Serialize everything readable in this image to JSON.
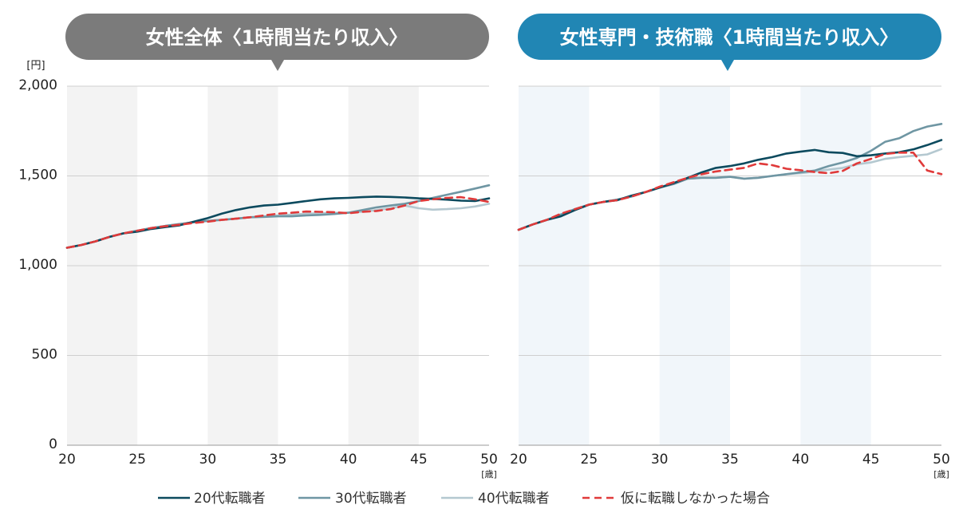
{
  "titles": {
    "left": "女性全体〈1時間当たり収入〉",
    "right": "女性専門・技術職〈1時間当たり収入〉"
  },
  "units": {
    "y": "[円]",
    "x": "[歳]"
  },
  "colors": {
    "left_title_bg": "#7b7b7b",
    "right_title_bg": "#2186b4",
    "left_band": "#f3f3f3",
    "right_band": "#f1f6fa",
    "grid": "#cfcfcf",
    "series_20": "#0c4a5e",
    "series_30": "#6f96a3",
    "series_40": "#b4c8d0",
    "series_none": "#e03a3a"
  },
  "legend": [
    {
      "label": "20代転職者",
      "color": "#0c4a5e",
      "dash": false
    },
    {
      "label": "30代転職者",
      "color": "#6f96a3",
      "dash": false
    },
    {
      "label": "40代転職者",
      "color": "#b4c8d0",
      "dash": false
    },
    {
      "label": "仮に転職しなかった場合",
      "color": "#e03a3a",
      "dash": true
    }
  ],
  "chart_data": [
    {
      "type": "line",
      "title": "女性全体〈1時間当たり収入〉",
      "ylabel": "[円]",
      "xlabel": "[歳]",
      "ylim": [
        0,
        2000
      ],
      "xlim": [
        20,
        50
      ],
      "yticks": [
        0,
        500,
        1000,
        1500,
        2000
      ],
      "ytick_labels": [
        "0",
        "500",
        "1,000",
        "1,500",
        "2,000"
      ],
      "xticks": [
        20,
        25,
        30,
        35,
        40,
        45,
        50
      ],
      "xtick_labels": [
        "20",
        "25",
        "30",
        "35",
        "40",
        "45",
        "50"
      ],
      "shaded_bands": [
        [
          20,
          25
        ],
        [
          30,
          35
        ],
        [
          40,
          45
        ]
      ],
      "grid": true,
      "x": [
        20,
        21,
        22,
        23,
        24,
        25,
        26,
        27,
        28,
        29,
        30,
        31,
        32,
        33,
        34,
        35,
        36,
        37,
        38,
        39,
        40,
        41,
        42,
        43,
        44,
        45,
        46,
        47,
        48,
        49,
        50
      ],
      "series": [
        {
          "name": "20代転職者",
          "values": [
            1100,
            1115,
            1135,
            1160,
            1180,
            1190,
            1205,
            1215,
            1225,
            1245,
            1265,
            1290,
            1310,
            1325,
            1335,
            1340,
            1350,
            1360,
            1370,
            1375,
            1378,
            1382,
            1385,
            1383,
            1380,
            1375,
            1372,
            1368,
            1362,
            1360,
            1375
          ]
        },
        {
          "name": "30代転職者",
          "values": [
            1100,
            1115,
            1135,
            1160,
            1180,
            1195,
            1210,
            1222,
            1232,
            1242,
            1250,
            1255,
            1262,
            1270,
            1272,
            1275,
            1275,
            1280,
            1283,
            1288,
            1295,
            1310,
            1325,
            1335,
            1345,
            1360,
            1378,
            1395,
            1412,
            1430,
            1448
          ]
        },
        {
          "name": "40代転職者",
          "values": [
            1100,
            1115,
            1135,
            1160,
            1180,
            1195,
            1210,
            1222,
            1232,
            1242,
            1250,
            1255,
            1262,
            1270,
            1275,
            1280,
            1285,
            1290,
            1292,
            1294,
            1295,
            1300,
            1310,
            1320,
            1335,
            1320,
            1312,
            1315,
            1320,
            1330,
            1345
          ]
        },
        {
          "name": "仮に転職しなかった場合",
          "values": [
            1100,
            1115,
            1135,
            1160,
            1180,
            1195,
            1210,
            1220,
            1228,
            1238,
            1245,
            1255,
            1262,
            1270,
            1280,
            1290,
            1295,
            1302,
            1300,
            1298,
            1292,
            1300,
            1305,
            1315,
            1335,
            1360,
            1370,
            1378,
            1382,
            1370,
            1355
          ]
        }
      ]
    },
    {
      "type": "line",
      "title": "女性専門・技術職〈1時間当たり収入〉",
      "ylabel": "",
      "xlabel": "[歳]",
      "ylim": [
        0,
        2000
      ],
      "xlim": [
        20,
        50
      ],
      "yticks": [
        0,
        500,
        1000,
        1500,
        2000
      ],
      "xticks": [
        20,
        25,
        30,
        35,
        40,
        45,
        50
      ],
      "xtick_labels": [
        "20",
        "25",
        "30",
        "35",
        "40",
        "45",
        "50"
      ],
      "shaded_bands": [
        [
          20,
          25
        ],
        [
          30,
          35
        ],
        [
          40,
          45
        ]
      ],
      "grid": true,
      "x": [
        20,
        21,
        22,
        23,
        24,
        25,
        26,
        27,
        28,
        29,
        30,
        31,
        32,
        33,
        34,
        35,
        36,
        37,
        38,
        39,
        40,
        41,
        42,
        43,
        44,
        45,
        46,
        47,
        48,
        49,
        50
      ],
      "series": [
        {
          "name": "20代転職者",
          "values": [
            1200,
            1230,
            1255,
            1275,
            1310,
            1340,
            1355,
            1365,
            1390,
            1410,
            1435,
            1460,
            1490,
            1520,
            1545,
            1555,
            1570,
            1590,
            1605,
            1625,
            1635,
            1645,
            1632,
            1628,
            1610,
            1615,
            1625,
            1632,
            1648,
            1672,
            1700
          ]
        },
        {
          "name": "30代転職者",
          "values": [
            1200,
            1230,
            1255,
            1285,
            1315,
            1340,
            1355,
            1368,
            1385,
            1410,
            1435,
            1455,
            1485,
            1490,
            1490,
            1495,
            1485,
            1490,
            1500,
            1510,
            1520,
            1530,
            1555,
            1575,
            1600,
            1640,
            1690,
            1710,
            1750,
            1775,
            1790
          ]
        },
        {
          "name": "40代転職者",
          "values": [
            1200,
            1230,
            1255,
            1285,
            1315,
            1340,
            1355,
            1368,
            1385,
            1410,
            1435,
            1455,
            1485,
            1490,
            1490,
            1495,
            1485,
            1490,
            1500,
            1510,
            1515,
            1525,
            1535,
            1545,
            1565,
            1575,
            1595,
            1605,
            1612,
            1620,
            1650
          ]
        },
        {
          "name": "仮に転職しなかった場合",
          "values": [
            1200,
            1230,
            1255,
            1290,
            1315,
            1340,
            1355,
            1365,
            1385,
            1410,
            1440,
            1465,
            1490,
            1510,
            1525,
            1535,
            1545,
            1570,
            1560,
            1540,
            1532,
            1522,
            1515,
            1528,
            1570,
            1595,
            1622,
            1630,
            1630,
            1530,
            1510
          ]
        }
      ]
    }
  ]
}
